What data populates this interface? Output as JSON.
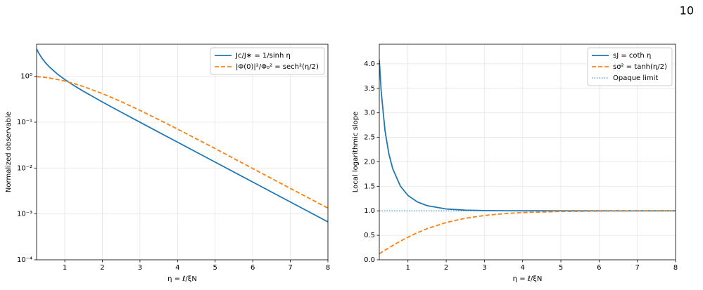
{
  "page_number": "10",
  "chart_data": [
    {
      "type": "line",
      "log_y": true,
      "grid": true,
      "legend": "upper right",
      "xlabel": "η = ℓ/ξN",
      "ylabel": "Normalized observable",
      "xlim": [
        0.25,
        8
      ],
      "xticks": [
        1,
        2,
        3,
        4,
        5,
        6,
        7,
        8
      ],
      "ylim": [
        0.0001,
        5
      ],
      "yticks": [
        {
          "value": 0.0001,
          "label": "10⁻⁴"
        },
        {
          "value": 0.001,
          "label": "10⁻³"
        },
        {
          "value": 0.01,
          "label": "10⁻²"
        },
        {
          "value": 0.1,
          "label": "10⁻¹"
        },
        {
          "value": 1,
          "label": "10⁰"
        }
      ],
      "x": [
        0.25,
        0.3,
        0.4,
        0.5,
        0.6,
        0.8,
        1,
        1.25,
        1.5,
        2,
        2.5,
        3,
        3.5,
        4,
        5,
        6,
        7,
        8
      ],
      "series": [
        {
          "name": "Jc/J∗ = 1/sinh η",
          "color": "#1f77b4",
          "dash": "solid",
          "values": [
            3.959,
            3.284,
            2.434,
            1.919,
            1.571,
            1.126,
            0.8509,
            0.6243,
            0.4696,
            0.2757,
            0.1653,
            0.0998,
            0.06045,
            0.03664,
            0.01348,
            0.004958,
            0.001824,
            0.000671
          ]
        },
        {
          "name": "|Φ(0)|²/Φ₀² = sech²(η/2)",
          "color": "#ff7f0e",
          "dash": "dashed",
          "values": [
            0.9845,
            0.9778,
            0.961,
            0.94,
            0.9151,
            0.8557,
            0.7864,
            0.6924,
            0.5967,
            0.42,
            0.2804,
            0.1808,
            0.1138,
            0.0707,
            0.0266,
            0.00977,
            0.0036,
            0.00134
          ]
        }
      ]
    },
    {
      "type": "line",
      "log_y": false,
      "grid": true,
      "legend": "upper right",
      "xlabel": "η = ℓ/ξN",
      "ylabel": "Local logarithmic slope",
      "xlim": [
        0.25,
        8
      ],
      "xticks": [
        1,
        2,
        3,
        4,
        5,
        6,
        7,
        8
      ],
      "ylim": [
        0,
        4.4
      ],
      "yticks": [
        {
          "value": 0,
          "label": "0.0"
        },
        0.5,
        {
          "value": 1,
          "label": "1.0"
        },
        1.5,
        {
          "value": 2,
          "label": "2.0"
        },
        2.5,
        {
          "value": 3,
          "label": "3.0"
        },
        3.5,
        {
          "value": 4,
          "label": "4.0"
        }
      ],
      "x": [
        0.25,
        0.3,
        0.4,
        0.5,
        0.6,
        0.8,
        1,
        1.25,
        1.5,
        2,
        2.5,
        3,
        3.5,
        4,
        5,
        6,
        7,
        8
      ],
      "series": [
        {
          "name": "sJ = coth η",
          "color": "#1f77b4",
          "dash": "solid",
          "values": [
            4.083,
            3.433,
            2.632,
            2.164,
            1.862,
            1.506,
            1.313,
            1.179,
            1.105,
            1.037,
            1.0136,
            1.005,
            1.0018,
            1.0007,
            1.0001,
            1.0,
            1.0,
            1.0
          ]
        },
        {
          "name": "sσ² = tanh(η/2)",
          "color": "#ff7f0e",
          "dash": "dashed",
          "values": [
            0.1244,
            0.1489,
            0.1974,
            0.2449,
            0.2913,
            0.3799,
            0.4621,
            0.5546,
            0.6351,
            0.7616,
            0.8483,
            0.9051,
            0.9414,
            0.964,
            0.9866,
            0.9951,
            0.9982,
            0.9993
          ]
        }
      ],
      "hline": {
        "name": "Opaque limit",
        "value": 1,
        "color": "#1f77b4",
        "dash": "dotted"
      }
    }
  ]
}
